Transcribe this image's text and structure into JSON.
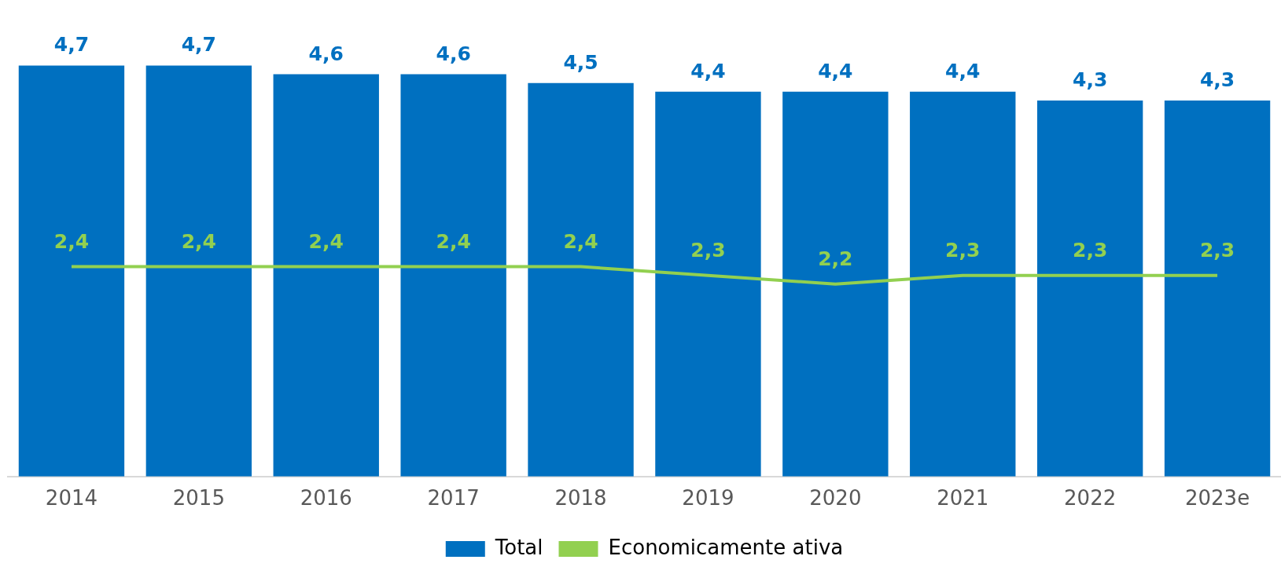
{
  "chart_data": {
    "type": "bar",
    "categories": [
      "2014",
      "2015",
      "2016",
      "2017",
      "2018",
      "2019",
      "2020",
      "2021",
      "2022",
      "2023e"
    ],
    "series": [
      {
        "name": "Total",
        "color": "#0070c0",
        "values": [
          4.7,
          4.7,
          4.6,
          4.6,
          4.5,
          4.4,
          4.4,
          4.4,
          4.3,
          4.3
        ],
        "value_labels": [
          "4,7",
          "4,7",
          "4,6",
          "4,6",
          "4,5",
          "4,4",
          "4,4",
          "4,4",
          "4,3",
          "4,3"
        ]
      },
      {
        "name": "Economicamente ativa",
        "type": "line",
        "color": "#92d050",
        "values": [
          2.4,
          2.4,
          2.4,
          2.4,
          2.4,
          2.3,
          2.2,
          2.3,
          2.3,
          2.3
        ],
        "value_labels": [
          "2,4",
          "2,4",
          "2,4",
          "2,4",
          "2,4",
          "2,3",
          "2,2",
          "2,3",
          "2,3",
          "2,3"
        ]
      }
    ],
    "legend": "bottom",
    "grid": false,
    "marker": "none",
    "line_style": "solid",
    "tick_labels": "x"
  }
}
